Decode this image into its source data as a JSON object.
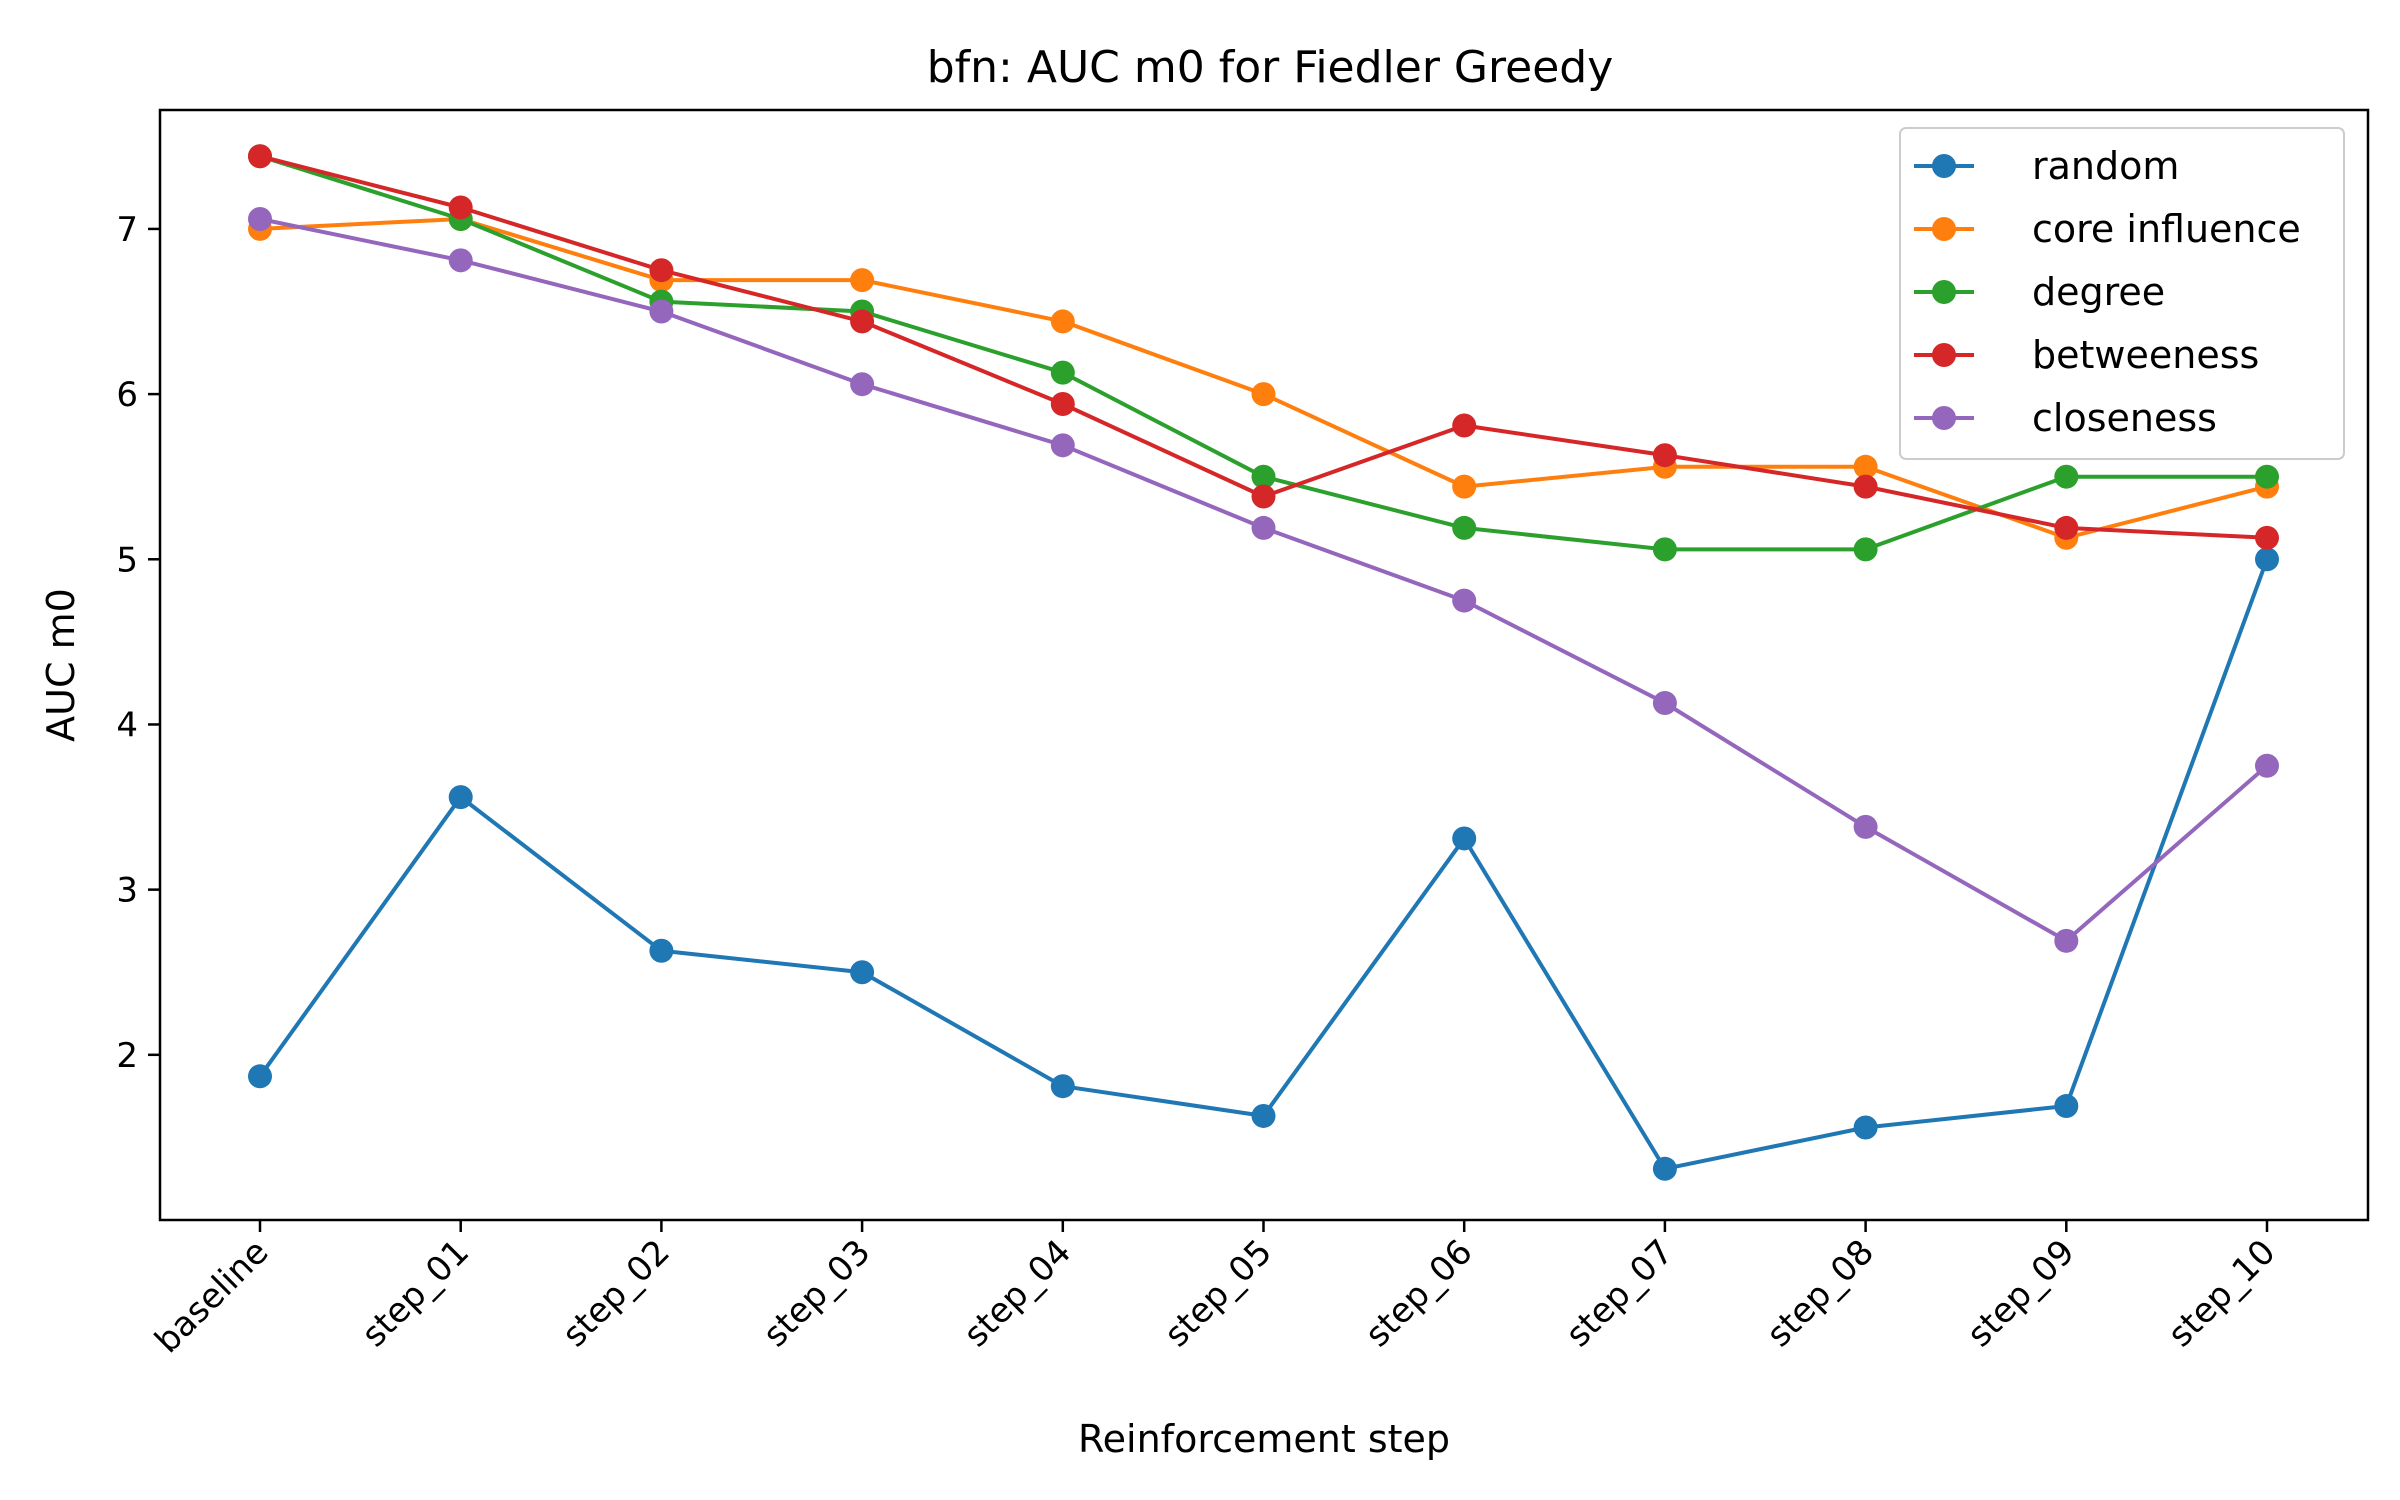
{
  "chart_data": {
    "type": "line",
    "title": "bfn: AUC m0 for Fiedler Greedy",
    "xlabel": "Reinforcement step",
    "ylabel": "AUC m0",
    "categories": [
      "baseline",
      "step_01",
      "step_02",
      "step_03",
      "step_04",
      "step_05",
      "step_06",
      "step_07",
      "step_08",
      "step_09",
      "step_10"
    ],
    "ylim": [
      1.0,
      7.72
    ],
    "yticks": [
      2,
      3,
      4,
      5,
      6,
      7
    ],
    "legend_position": "top-right",
    "grid": false,
    "marker": "circle",
    "series": [
      {
        "name": "random",
        "color": "#1f77b4",
        "values": [
          1.87,
          3.56,
          2.63,
          2.5,
          1.81,
          1.63,
          3.31,
          1.31,
          1.56,
          1.69,
          5.0
        ]
      },
      {
        "name": "core influence",
        "color": "#ff7f0e",
        "values": [
          7.0,
          7.06,
          6.69,
          6.69,
          6.44,
          6.0,
          5.44,
          5.56,
          5.56,
          5.13,
          5.44
        ]
      },
      {
        "name": "degree",
        "color": "#2ca02c",
        "values": [
          7.44,
          7.06,
          6.56,
          6.5,
          6.13,
          5.5,
          5.19,
          5.06,
          5.06,
          5.5,
          5.5
        ]
      },
      {
        "name": "betweeness",
        "color": "#d62728",
        "values": [
          7.44,
          7.13,
          6.75,
          6.44,
          5.94,
          5.38,
          5.81,
          5.63,
          5.44,
          5.19,
          5.13
        ]
      },
      {
        "name": "closeness",
        "color": "#9467bd",
        "values": [
          7.06,
          6.81,
          6.5,
          6.06,
          5.69,
          5.19,
          4.75,
          4.13,
          3.38,
          2.69,
          3.75
        ]
      }
    ]
  }
}
